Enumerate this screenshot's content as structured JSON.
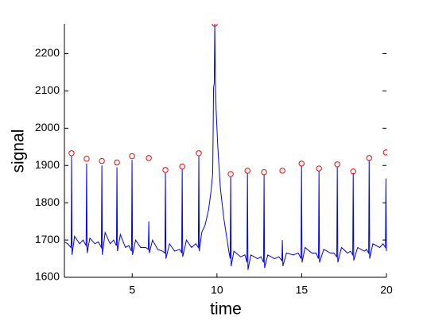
{
  "chart_data": {
    "type": "line",
    "x_label": "time",
    "y_label": "signal",
    "xlim": [
      1,
      20
    ],
    "ylim": [
      1600,
      2280
    ],
    "xticks": [
      5,
      10,
      15,
      20
    ],
    "yticks": [
      1600,
      1700,
      1800,
      1900,
      2000,
      2100,
      2200
    ],
    "series": [
      {
        "style": "line",
        "color": "#0000ff",
        "x": [
          1.0,
          1.2,
          1.38,
          1.4,
          1.42,
          1.45,
          1.6,
          1.9,
          2.1,
          2.28,
          2.31,
          2.34,
          2.5,
          2.8,
          3.0,
          3.18,
          3.21,
          3.24,
          3.4,
          3.7,
          3.9,
          4.07,
          4.1,
          4.13,
          4.3,
          4.6,
          4.8,
          4.96,
          4.99,
          5.02,
          5.2,
          5.5,
          5.8,
          5.95,
          5.98,
          6.01,
          6.2,
          6.5,
          6.8,
          6.93,
          6.96,
          6.99,
          7.2,
          7.5,
          7.8,
          7.92,
          7.95,
          7.98,
          8.2,
          8.5,
          8.75,
          8.9,
          8.93,
          8.96,
          9.1,
          9.3,
          9.5,
          9.65,
          9.75,
          9.8,
          9.84,
          9.87,
          9.9,
          9.95,
          10.05,
          10.2,
          10.4,
          10.6,
          10.7,
          10.78,
          10.81,
          10.84,
          11.0,
          11.4,
          11.65,
          11.77,
          11.8,
          11.83,
          12.0,
          12.4,
          12.6,
          12.75,
          12.78,
          12.81,
          13.0,
          13.4,
          13.65,
          13.83,
          13.86,
          13.89,
          14.1,
          14.5,
          14.8,
          14.96,
          14.99,
          15.02,
          15.2,
          15.6,
          15.85,
          15.99,
          16.02,
          16.05,
          16.3,
          16.7,
          16.9,
          17.07,
          17.1,
          17.13,
          17.35,
          17.7,
          17.88,
          18.01,
          18.04,
          18.07,
          18.3,
          18.7,
          18.82,
          18.95,
          18.98,
          19.01,
          19.2,
          19.6,
          19.8,
          19.94,
          19.97,
          20.0
        ],
        "values": [
          1695,
          1690,
          1680,
          1690,
          1925,
          1660,
          1710,
          1690,
          1700,
          1685,
          1905,
          1665,
          1705,
          1690,
          1695,
          1680,
          1900,
          1660,
          1720,
          1690,
          1700,
          1685,
          1895,
          1670,
          1715,
          1680,
          1685,
          1670,
          1915,
          1660,
          1700,
          1680,
          1680,
          1675,
          1750,
          1665,
          1700,
          1675,
          1670,
          1665,
          1880,
          1650,
          1690,
          1670,
          1675,
          1665,
          1890,
          1655,
          1700,
          1680,
          1690,
          1680,
          1925,
          1670,
          1720,
          1740,
          1780,
          1830,
          1880,
          2110,
          2120,
          2280,
          2150,
          2050,
          1950,
          1840,
          1760,
          1700,
          1670,
          1650,
          1870,
          1630,
          1670,
          1655,
          1660,
          1640,
          1880,
          1620,
          1660,
          1650,
          1655,
          1640,
          1875,
          1625,
          1660,
          1650,
          1655,
          1645,
          1700,
          1630,
          1665,
          1660,
          1665,
          1650,
          1900,
          1640,
          1680,
          1665,
          1665,
          1650,
          1885,
          1640,
          1675,
          1665,
          1665,
          1655,
          1895,
          1640,
          1680,
          1665,
          1670,
          1660,
          1880,
          1645,
          1680,
          1670,
          1675,
          1665,
          1915,
          1650,
          1690,
          1680,
          1690,
          1680,
          1865,
          1670
        ]
      },
      {
        "style": "markers",
        "color": "#ff0000",
        "x": [
          1.42,
          2.31,
          3.21,
          4.1,
          4.99,
          5.98,
          6.96,
          7.95,
          8.93,
          9.87,
          10.81,
          11.8,
          12.78,
          13.86,
          14.99,
          16.02,
          17.1,
          18.04,
          18.98,
          19.97
        ],
        "values": [
          1933,
          1918,
          1912,
          1908,
          1925,
          1920,
          1888,
          1897,
          1933,
          2280,
          1877,
          1886,
          1882,
          1886,
          1905,
          1892,
          1903,
          1884,
          1920,
          1935
        ]
      }
    ]
  }
}
